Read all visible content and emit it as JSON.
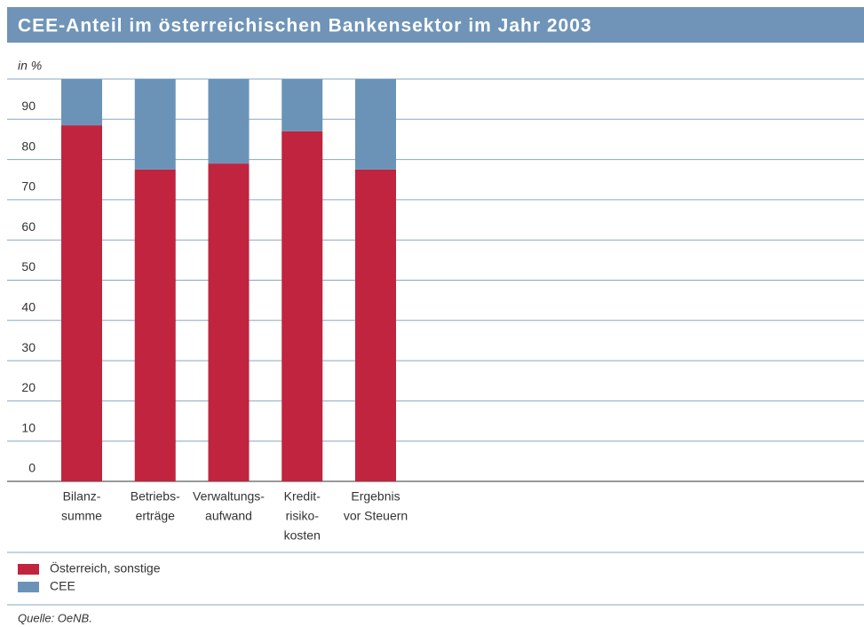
{
  "chart_data": {
    "type": "stacked_bar",
    "title": "CEE-Anteil im österreichischen Bankensektor im Jahr 2003",
    "y_label": "in %",
    "categories": [
      [
        "Bilanz-",
        "summe"
      ],
      [
        "Betriebs-",
        "erträge"
      ],
      [
        "Verwaltungs-",
        "aufwand"
      ],
      [
        "Kredit-",
        "risiko-",
        "kosten"
      ],
      [
        "Ergebnis",
        "vor Steuern"
      ]
    ],
    "series": [
      {
        "name": "Österreich, sonstige",
        "color": "#c0243e",
        "values": [
          88.5,
          77.5,
          79,
          87,
          77.5
        ]
      },
      {
        "name": "CEE",
        "color": "#6b93b8",
        "values": [
          11.5,
          22.5,
          21,
          13,
          22.5
        ]
      }
    ],
    "ylim": [
      0,
      100
    ],
    "yticks": [
      0,
      10,
      20,
      30,
      40,
      50,
      60,
      70,
      80,
      90
    ],
    "grid": true,
    "source": "Quelle: OeNB."
  }
}
